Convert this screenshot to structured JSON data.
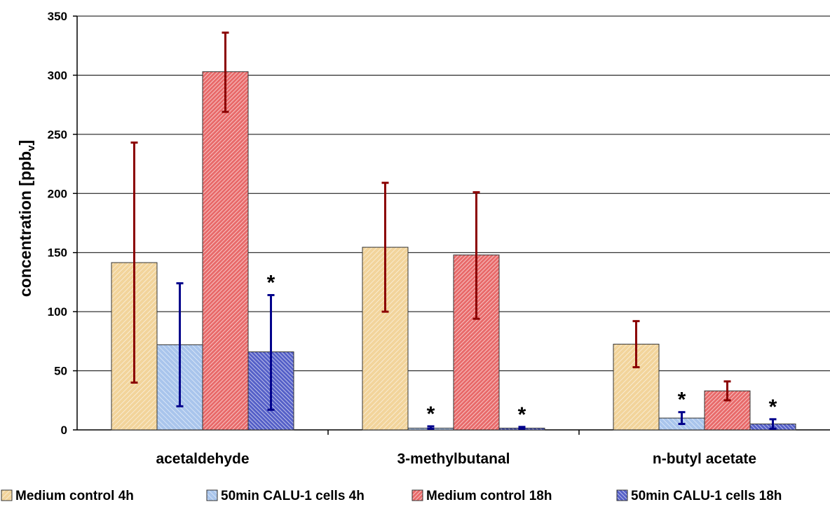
{
  "chart_data": {
    "type": "bar",
    "title": "",
    "ylabel": "concentration",
    "ylabel_unit_main": "[ppb",
    "ylabel_unit_sub": "v",
    "ylabel_unit_close": "]",
    "ylim": [
      0,
      350
    ],
    "yticks": [
      0,
      50,
      100,
      150,
      200,
      250,
      300,
      350
    ],
    "grid": true,
    "legend_position": "bottom",
    "categories": [
      "acetaldehyde",
      "3-methylbutanal",
      "n-butyl acetate"
    ],
    "series": [
      {
        "name": "Medium control 4h",
        "color": "#f2d49b",
        "pattern": "hatch-light-diag",
        "error_color": "#8b0000",
        "values": [
          141.5,
          154.5,
          72.5
        ],
        "err_low": [
          40,
          100,
          53
        ],
        "err_high": [
          243,
          209,
          92
        ],
        "significant": [
          false,
          false,
          false
        ]
      },
      {
        "name": "50min CALU-1 cells 4h",
        "color": "#a9c5ec",
        "pattern": "hatch-light-anti",
        "error_color": "#00008b",
        "values": [
          72,
          1.5,
          10
        ],
        "err_low": [
          20,
          1,
          5
        ],
        "err_high": [
          124,
          3,
          15
        ],
        "significant": [
          false,
          true,
          true
        ]
      },
      {
        "name": "Medium control 18h",
        "color": "#e86a6a",
        "pattern": "hatch-dense-diag",
        "error_color": "#8b0000",
        "values": [
          303,
          148,
          33
        ],
        "err_low": [
          269,
          94,
          25
        ],
        "err_high": [
          336,
          201,
          41
        ],
        "significant": [
          false,
          false,
          false
        ]
      },
      {
        "name": "50min CALU-1 cells 18h",
        "color": "#5560c8",
        "pattern": "hatch-dense-anti",
        "error_color": "#00008b",
        "values": [
          66,
          1.5,
          5
        ],
        "err_low": [
          17,
          1,
          1
        ],
        "err_high": [
          114,
          2.5,
          9
        ],
        "significant": [
          true,
          true,
          true
        ]
      }
    ],
    "significance_marker": "*"
  }
}
